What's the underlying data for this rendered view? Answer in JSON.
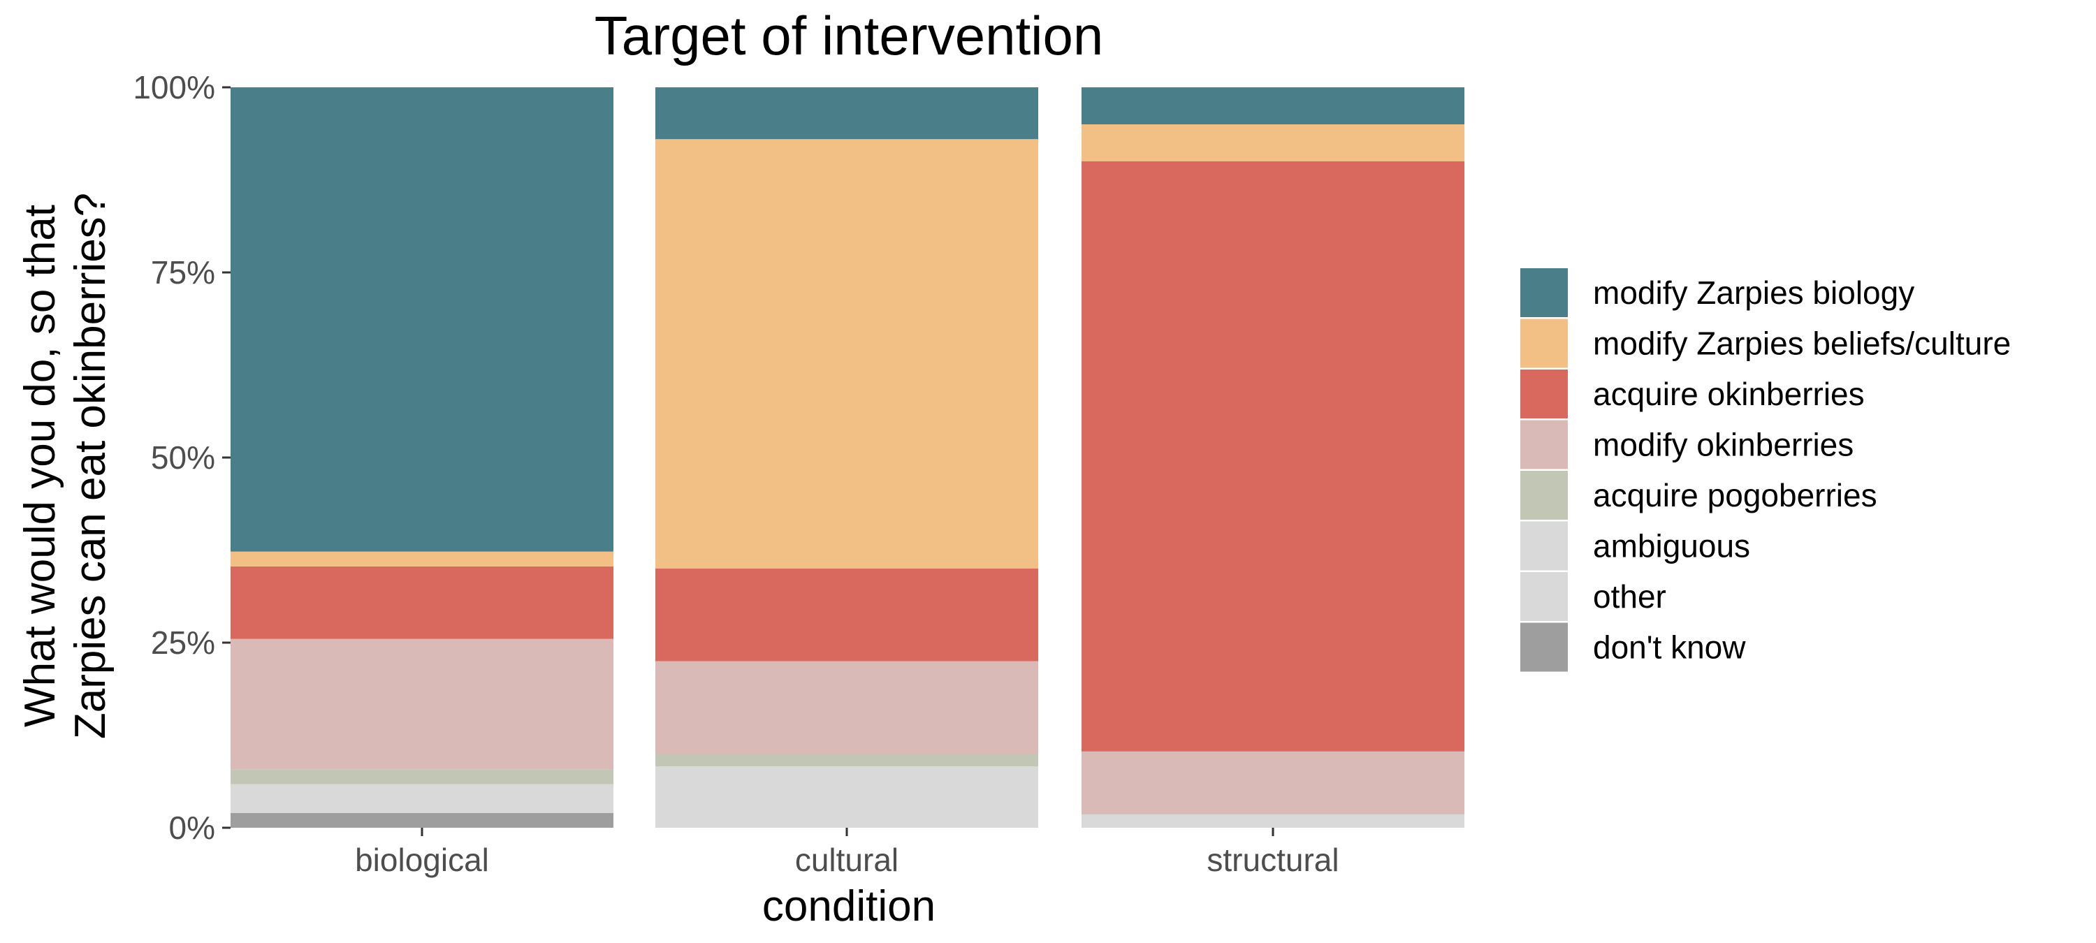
{
  "chart_data": {
    "type": "bar",
    "stacked": true,
    "normalized": true,
    "title": "Target of intervention",
    "xlabel": "condition",
    "ylabel_lines": [
      "What would you do, so that",
      "Zarpies can eat okinberries?"
    ],
    "categories": [
      "biological",
      "cultural",
      "structural"
    ],
    "ylim": [
      0,
      1
    ],
    "yticks": [
      {
        "value": 0,
        "label": "0%"
      },
      {
        "value": 0.25,
        "label": "25%"
      },
      {
        "value": 0.5,
        "label": "50%"
      },
      {
        "value": 0.75,
        "label": "75%"
      },
      {
        "value": 1,
        "label": "100%"
      }
    ],
    "grid": false,
    "legend_position": "right",
    "series": [
      {
        "name": "modify Zarpies biology",
        "color": "#4a7f8a",
        "values": [
          0.627,
          0.07,
          0.05
        ]
      },
      {
        "name": "modify Zarpies beliefs/culture",
        "color": "#f2bf84",
        "values": [
          0.02,
          0.58,
          0.05
        ]
      },
      {
        "name": "acquire okinberries",
        "color": "#d9695f",
        "values": [
          0.098,
          0.125,
          0.797
        ]
      },
      {
        "name": "modify okinberries",
        "color": "#dabab7",
        "values": [
          0.176,
          0.125,
          0.085
        ]
      },
      {
        "name": "acquire pogoberries",
        "color": "#c2c7b5",
        "values": [
          0.02,
          0.017,
          0.0
        ]
      },
      {
        "name": "ambiguous",
        "color": "#d9d9d9",
        "values": [
          0.039,
          0.083,
          0.018
        ]
      },
      {
        "name": "other",
        "color": "#d9d9d9",
        "values": [
          0.0,
          0.0,
          0.0
        ]
      },
      {
        "name": "don't know",
        "color": "#9e9e9e",
        "values": [
          0.02,
          0.0,
          0.0
        ]
      }
    ]
  }
}
